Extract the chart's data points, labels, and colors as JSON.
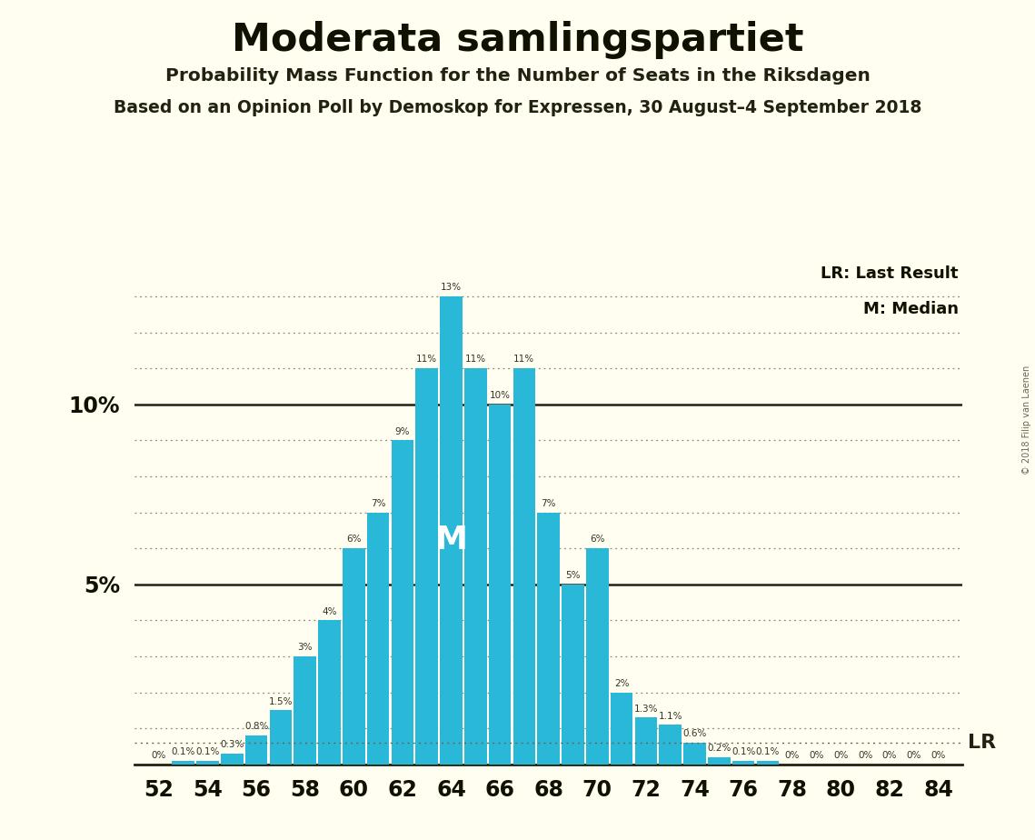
{
  "title": "Moderata samlingspartiet",
  "subtitle1": "Probability Mass Function for the Number of Seats in the Riksdagen",
  "subtitle2": "Based on an Opinion Poll by Demoskop for Expressen, 30 August–4 September 2018",
  "copyright": "© 2018 Filip van Laenen",
  "seats": [
    52,
    53,
    54,
    55,
    56,
    57,
    58,
    59,
    60,
    61,
    62,
    63,
    64,
    65,
    66,
    67,
    68,
    69,
    70,
    71,
    72,
    73,
    74,
    75,
    76,
    77,
    78,
    79,
    80,
    81,
    82,
    83,
    84
  ],
  "probabilities": [
    0.0,
    0.1,
    0.1,
    0.3,
    0.8,
    1.5,
    3.0,
    4.0,
    6.0,
    7.0,
    9.0,
    11.0,
    13.0,
    11.0,
    10.0,
    11.0,
    7.0,
    5.0,
    6.0,
    2.0,
    1.3,
    1.1,
    0.6,
    0.2,
    0.1,
    0.1,
    0.0,
    0.0,
    0.0,
    0.0,
    0.0,
    0.0,
    0.0
  ],
  "bar_color": "#29B8D8",
  "background_color": "#FFFEF0",
  "bar_labels": [
    "0%",
    "0.1%",
    "0.1%",
    "0.3%",
    "0.8%",
    "1.5%",
    "3%",
    "4%",
    "6%",
    "7%",
    "9%",
    "11%",
    "13%",
    "11%",
    "10%",
    "11%",
    "7%",
    "5%",
    "6%",
    "2%",
    "1.3%",
    "1.1%",
    "0.6%",
    "0.2%",
    "0.1%",
    "0.1%",
    "0%",
    "0%",
    "0%",
    "0%",
    "0%",
    "0%",
    "0%"
  ],
  "median_seat": 64,
  "lr_line_value": 0.6,
  "ylim": [
    0,
    14.0
  ],
  "solid_lines": [
    5.0,
    10.0
  ],
  "dotted_line_step": 1.0,
  "legend_lr": "LR: Last Result",
  "legend_m": "M: Median",
  "lr_label": "LR",
  "m_label": "M",
  "xtick_seats": [
    52,
    54,
    56,
    58,
    60,
    62,
    64,
    66,
    68,
    70,
    72,
    74,
    76,
    78,
    80,
    82,
    84
  ]
}
